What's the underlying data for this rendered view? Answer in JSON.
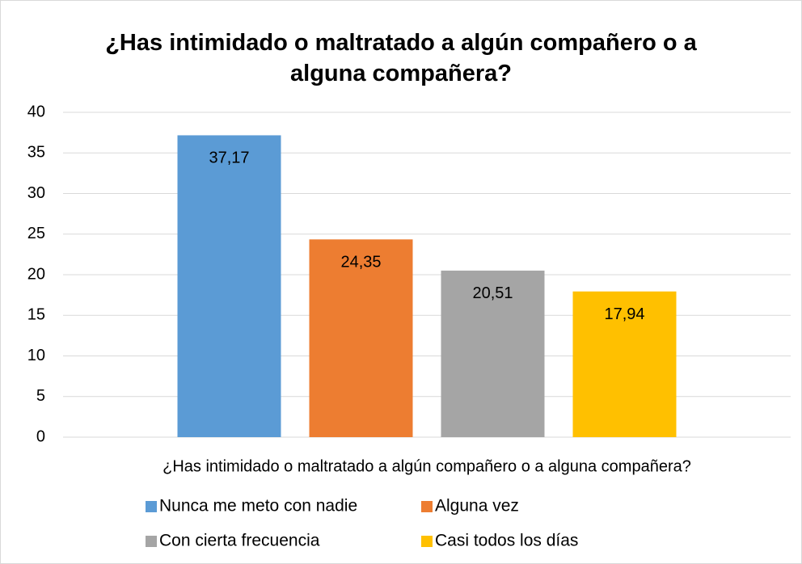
{
  "chart_data": {
    "type": "bar",
    "title": "¿Has intimidado o maltratado a algún compañero o a alguna compañera?",
    "categories": [
      "¿Has intimidado o maltratado a algún compañero o a alguna compañera?"
    ],
    "series": [
      {
        "name": "Nunca me meto con nadie",
        "color": "#5b9bd5",
        "values": [
          37.17
        ],
        "value_labels": [
          "37,17"
        ]
      },
      {
        "name": "Alguna vez",
        "color": "#ed7d31",
        "values": [
          24.35
        ],
        "value_labels": [
          "24,35"
        ]
      },
      {
        "name": "Con cierta frecuencia",
        "color": "#a5a5a5",
        "values": [
          20.51
        ],
        "value_labels": [
          "20,51"
        ]
      },
      {
        "name": "Casi todos los días",
        "color": "#ffc000",
        "values": [
          17.94
        ],
        "value_labels": [
          "17,94"
        ]
      }
    ],
    "ylim": [
      0,
      40
    ],
    "yticks": [
      0,
      5,
      10,
      15,
      20,
      25,
      30,
      35,
      40
    ],
    "grid": true,
    "legend": "bottom"
  }
}
